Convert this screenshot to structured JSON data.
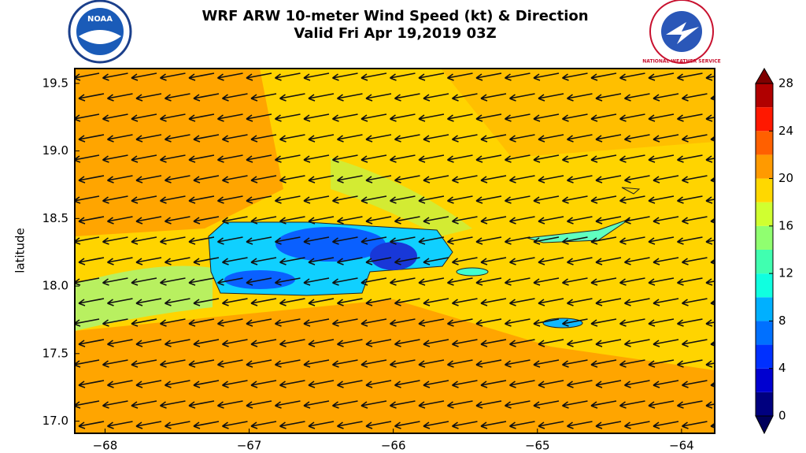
{
  "map": {
    "title": "WRF ARW 10-meter Wind Speed (kt) & Direction",
    "subtitle": "Valid Fri Apr 19,2019 03Z",
    "y_label": "latitude",
    "left_logo": "NOAA",
    "right_logo": "NATIONAL WEATHER SERVICE",
    "xlim": [
      -68.21,
      -63.77
    ],
    "ylim": [
      16.91,
      19.61
    ],
    "xticks": [
      {
        "value": -68,
        "label": "−68"
      },
      {
        "value": -67,
        "label": "−67"
      },
      {
        "value": -66,
        "label": "−66"
      },
      {
        "value": -65,
        "label": "−65"
      },
      {
        "value": -64,
        "label": "−64"
      }
    ],
    "yticks": [
      {
        "value": 17.0,
        "label": "17.0"
      },
      {
        "value": 17.5,
        "label": "17.5"
      },
      {
        "value": 18.0,
        "label": "18.0"
      },
      {
        "value": 18.5,
        "label": "18.5"
      },
      {
        "value": 19.0,
        "label": "19.0"
      },
      {
        "value": 19.5,
        "label": "19.5"
      }
    ],
    "colorbar": {
      "lim": [
        0,
        28
      ],
      "ticks": [
        0,
        4,
        8,
        12,
        16,
        20,
        24,
        28
      ],
      "colors": [
        "#00007f",
        "#0000d0",
        "#0030ff",
        "#0070ff",
        "#00b0ff",
        "#10ffe0",
        "#40ffb0",
        "#90ff70",
        "#d0ff30",
        "#ffd800",
        "#ff9a00",
        "#ff6000",
        "#ff1800",
        "#b00000"
      ],
      "under_color": "#00005a",
      "over_color": "#7f0000"
    }
  }
}
